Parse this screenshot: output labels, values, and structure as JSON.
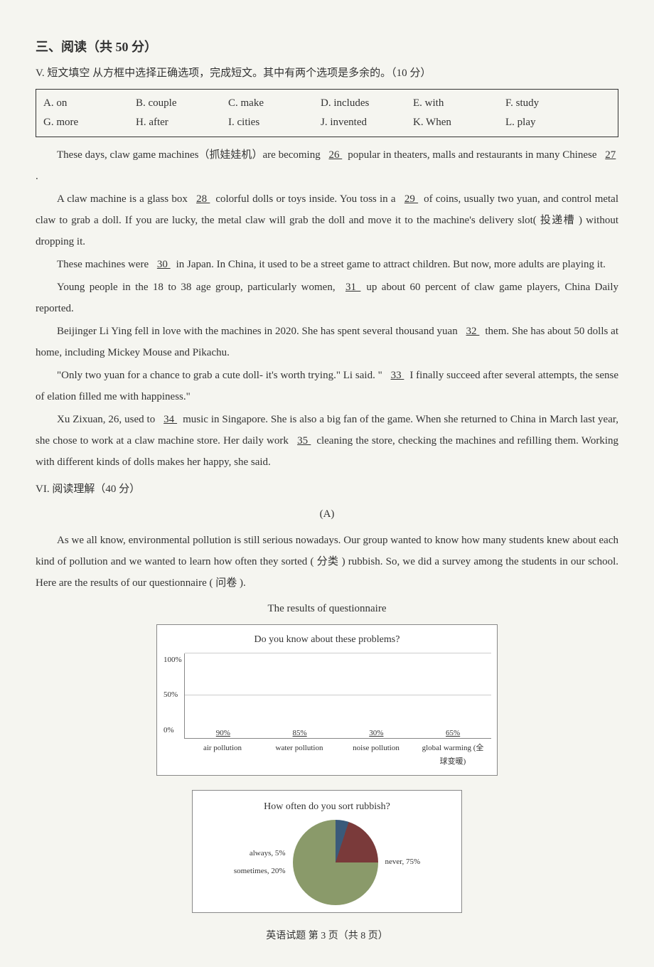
{
  "section": {
    "title": "三、阅读（共 50 分）",
    "subtitle": "V. 短文填空 从方框中选择正确选项，完成短文。其中有两个选项是多余的。（10 分）"
  },
  "options": {
    "row1": [
      "A. on",
      "B. couple",
      "C. make",
      "D. includes",
      "E. with",
      "F. study"
    ],
    "row2": [
      "G. more",
      "H. after",
      "I. cities",
      "J. invented",
      "K. When",
      "L. play"
    ]
  },
  "passage1": {
    "p1_a": "These days, claw game machines（抓娃娃机）are becoming ",
    "blank26": "  26  ",
    "p1_b": " popular in theaters, malls and restaurants in many Chinese ",
    "blank27": "  27  ",
    "p1_c": ".",
    "p2_a": "A claw machine is a glass box ",
    "blank28": "  28  ",
    "p2_b": " colorful dolls or toys inside. You toss in a ",
    "blank29": "  29  ",
    "p2_c": " of coins, usually two yuan, and control metal claw to grab a doll. If you are lucky, the metal claw will grab the doll and move it to the machine's delivery slot( 投递槽 ) without dropping it.",
    "p3_a": "These machines were ",
    "blank30": "  30  ",
    "p3_b": " in Japan. In China, it used to be a street game to attract children. But now, more adults are playing it.",
    "p4_a": "Young people in the 18 to 38 age group, particularly women, ",
    "blank31": "  31  ",
    "p4_b": " up about 60 percent of claw game players, China Daily reported.",
    "p5_a": "Beijinger Li Ying fell in love with the machines in 2020. She has spent several thousand yuan ",
    "blank32": "  32  ",
    "p5_b": " them. She has about 50 dolls at home, including Mickey Mouse and Pikachu.",
    "p6_a": "\"Only two yuan for a chance to grab a cute doll- it's worth trying.\" Li said. \" ",
    "blank33": "  33  ",
    "p6_b": " I finally succeed after several attempts, the sense of elation filled me with happiness.\"",
    "p7_a": "Xu Zixuan, 26, used to ",
    "blank34": "  34  ",
    "p7_b": " music in Singapore. She is also a big fan of the game. When she returned to China in March last year, she chose to work at a claw machine store. Her daily work ",
    "blank35": "  35  ",
    "p7_c": " cleaning the store, checking the machines and refilling them. Working with different kinds of dolls makes her happy, she said."
  },
  "reading": {
    "title": "VI. 阅读理解（40 分）",
    "label_a": "(A)",
    "passage_a": "As we all know, environmental pollution is still serious nowadays. Our group wanted to know how many students knew about each kind of pollution and we wanted to learn how often they sorted ( 分类 ) rubbish. So, we did a survey among the students in our school. Here are the results of our questionnaire ( 问卷 ).",
    "results_title": "The results of questionnaire"
  },
  "bar_chart": {
    "type": "bar",
    "title": "Do you know about these problems?",
    "categories": [
      "air pollution",
      "water pollution",
      "noise pollution",
      "global warming (全球变暖)"
    ],
    "values": [
      90,
      85,
      30,
      65
    ],
    "value_labels": [
      "90%",
      "85%",
      "30%",
      "65%"
    ],
    "bar_color": "#4a6a8a",
    "ylim": [
      0,
      100
    ],
    "yticks": [
      "0%",
      "50%",
      "100%"
    ],
    "background": "#ffffff",
    "grid_color": "#cccccc"
  },
  "pie_chart": {
    "type": "pie",
    "title": "How often do you sort rubbish?",
    "slices": [
      {
        "label": "always, 5%",
        "value": 5,
        "color": "#3a5a7a"
      },
      {
        "label": "sometimes, 20%",
        "value": 20,
        "color": "#7a3a3a"
      },
      {
        "label": "never, 75%",
        "value": 75,
        "color": "#8a9a6a"
      }
    ],
    "background": "#ffffff"
  },
  "footer": "英语试题 第 3 页（共 8 页）"
}
